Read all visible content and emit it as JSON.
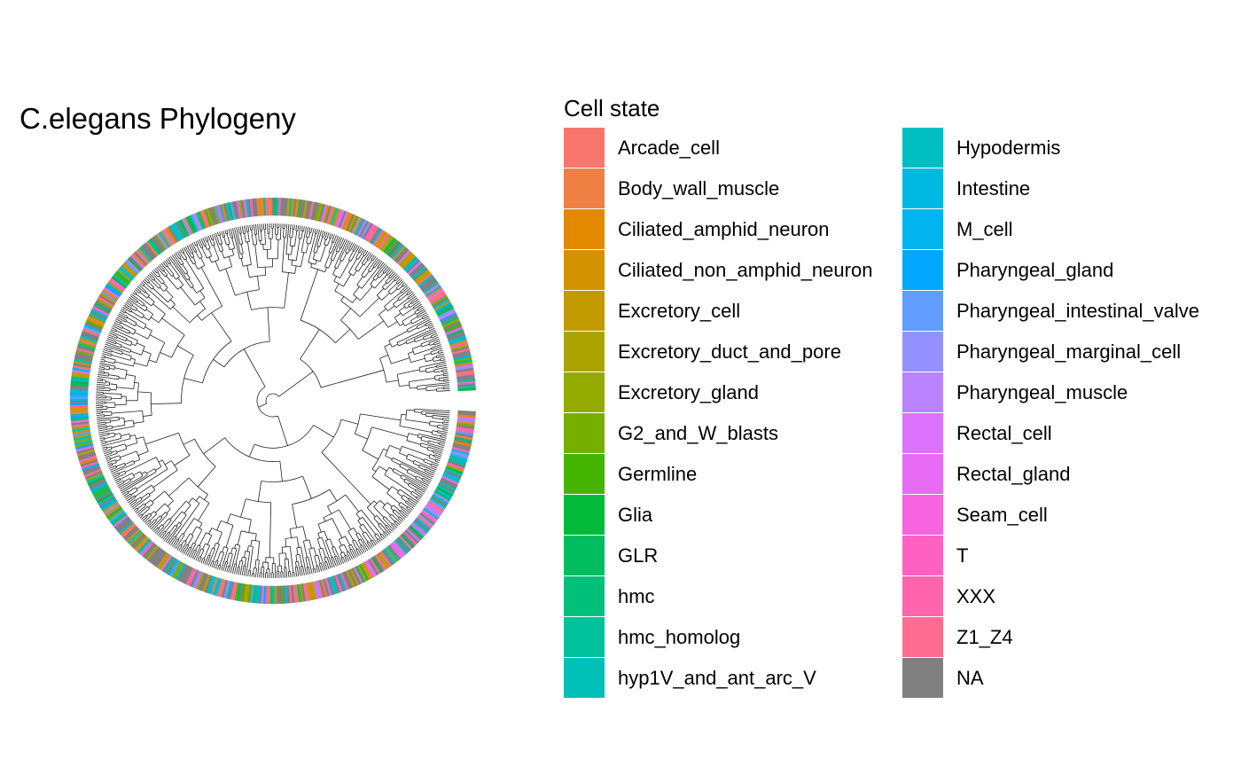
{
  "title": "C.elegans Phylogeny",
  "legend": {
    "title": "Cell state",
    "columns": [
      [
        {
          "label": "Arcade_cell",
          "color": "#F8766D"
        },
        {
          "label": "Body_wall_muscle",
          "color": "#EE8044"
        },
        {
          "label": "Ciliated_amphid_neuron",
          "color": "#E38900"
        },
        {
          "label": "Ciliated_non_amphid_neuron",
          "color": "#D39200"
        },
        {
          "label": "Excretory_cell",
          "color": "#C19A00"
        },
        {
          "label": "Excretory_duct_and_pore",
          "color": "#ABA300"
        },
        {
          "label": "Excretory_gland",
          "color": "#93AA00"
        },
        {
          "label": "G2_and_W_blasts",
          "color": "#75AF00"
        },
        {
          "label": "Germline",
          "color": "#45B500"
        },
        {
          "label": "Glia",
          "color": "#00BA38"
        },
        {
          "label": "GLR",
          "color": "#00BD5F"
        },
        {
          "label": "hmc",
          "color": "#00C07C"
        },
        {
          "label": "hmc_homolog",
          "color": "#00C19A"
        },
        {
          "label": "hyp1V_and_ant_arc_V",
          "color": "#00C0B8"
        }
      ],
      [
        {
          "label": "Hypodermis",
          "color": "#00BFC4"
        },
        {
          "label": "Intestine",
          "color": "#00B9E3"
        },
        {
          "label": "M_cell",
          "color": "#00B4EF"
        },
        {
          "label": "Pharyngeal_gland",
          "color": "#00A9FF"
        },
        {
          "label": "Pharyngeal_intestinal_valve",
          "color": "#619CFF"
        },
        {
          "label": "Pharyngeal_marginal_cell",
          "color": "#9590FF"
        },
        {
          "label": "Pharyngeal_muscle",
          "color": "#B983FF"
        },
        {
          "label": "Rectal_cell",
          "color": "#DB72FB"
        },
        {
          "label": "Rectal_gland",
          "color": "#E76BF3"
        },
        {
          "label": "Seam_cell",
          "color": "#F863DF"
        },
        {
          "label": "T",
          "color": "#FF61C3"
        },
        {
          "label": "XXX",
          "color": "#FF65AC"
        },
        {
          "label": "Z1_Z4",
          "color": "#FF6C91"
        },
        {
          "label": "NA",
          "color": "#808080"
        }
      ]
    ]
  }
}
